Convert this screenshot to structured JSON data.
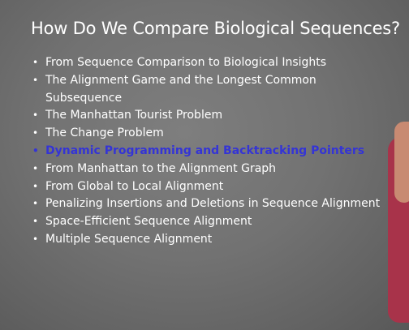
{
  "slide": {
    "title": "How Do We Compare Biological Sequences?",
    "bullet_glyph": "•",
    "topics": [
      {
        "label": "From Sequence Comparison to Biological Insights",
        "current": false
      },
      {
        "label": "The Alignment Game and the Longest Common Subsequence",
        "current": false
      },
      {
        "label": "The Manhattan Tourist Problem",
        "current": false
      },
      {
        "label": "The Change Problem",
        "current": false
      },
      {
        "label": "Dynamic Programming and Backtracking Pointers",
        "current": true
      },
      {
        "label": "From Manhattan to the Alignment Graph",
        "current": false
      },
      {
        "label": "From Global to Local Alignment",
        "current": false
      },
      {
        "label": "Penalizing Insertions and Deletions in Sequence Alignment",
        "current": false
      },
      {
        "label": "Space-Efficient Sequence Alignment",
        "current": false
      },
      {
        "label": "Multiple Sequence Alignment",
        "current": false
      }
    ]
  },
  "colors": {
    "text": "#ffffff",
    "current_topic": "#3434d6",
    "background": "#737373",
    "presenter_shirt": "#a8334a"
  }
}
